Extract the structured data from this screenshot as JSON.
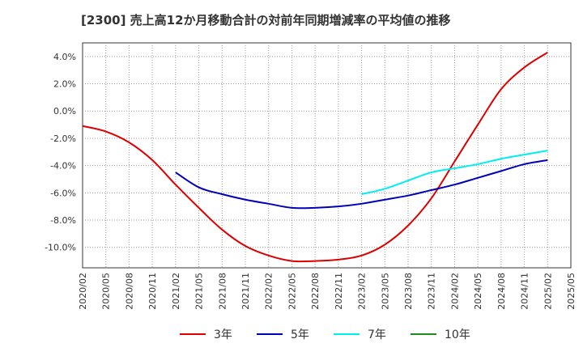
{
  "chart_data": {
    "type": "line",
    "title": "[2300]  売上高12か月移動合計の対前年同期増減率の平均値の推移",
    "xlabel": "",
    "ylabel": "",
    "x": [
      "2020/02",
      "2020/05",
      "2020/08",
      "2020/11",
      "2021/02",
      "2021/05",
      "2021/08",
      "2021/11",
      "2022/02",
      "2022/05",
      "2022/08",
      "2022/11",
      "2023/02",
      "2023/05",
      "2023/08",
      "2023/11",
      "2024/02",
      "2024/05",
      "2024/08",
      "2024/11",
      "2025/02",
      "2025/05"
    ],
    "ylim": [
      -11.5,
      5.0
    ],
    "yticks": [
      4.0,
      2.0,
      0.0,
      -2.0,
      -4.0,
      -6.0,
      -8.0,
      -10.0
    ],
    "ytick_labels": [
      "4.0%",
      "2.0%",
      "0.0%",
      "-2.0%",
      "-4.0%",
      "-6.0%",
      "-8.0%",
      "-10.0%"
    ],
    "grid": true,
    "legend_position": "bottom",
    "series": [
      {
        "name": "3年",
        "color": "#dd0000",
        "values": [
          -1.1,
          -1.5,
          -2.3,
          -3.6,
          -5.4,
          -7.1,
          -8.7,
          -9.9,
          -10.6,
          -11.0,
          -11.0,
          -10.9,
          -10.6,
          -9.8,
          -8.4,
          -6.4,
          -3.7,
          -1.0,
          1.6,
          3.2,
          4.3,
          null
        ]
      },
      {
        "name": "5年",
        "color": "#0000bb",
        "values": [
          null,
          null,
          null,
          null,
          -4.5,
          -5.6,
          -6.1,
          -6.5,
          -6.8,
          -7.1,
          -7.1,
          -7.0,
          -6.8,
          -6.5,
          -6.2,
          -5.8,
          -5.4,
          -4.9,
          -4.4,
          -3.9,
          -3.6,
          null
        ]
      },
      {
        "name": "7年",
        "color": "#00eeee",
        "values": [
          null,
          null,
          null,
          null,
          null,
          null,
          null,
          null,
          null,
          null,
          null,
          null,
          -6.1,
          -5.7,
          -5.1,
          -4.5,
          -4.2,
          -3.9,
          -3.5,
          -3.2,
          -2.9,
          null
        ]
      },
      {
        "name": "10年",
        "color": "#228822",
        "values": [
          null,
          null,
          null,
          null,
          null,
          null,
          null,
          null,
          null,
          null,
          null,
          null,
          null,
          null,
          null,
          null,
          null,
          null,
          null,
          null,
          null,
          null
        ]
      }
    ]
  }
}
